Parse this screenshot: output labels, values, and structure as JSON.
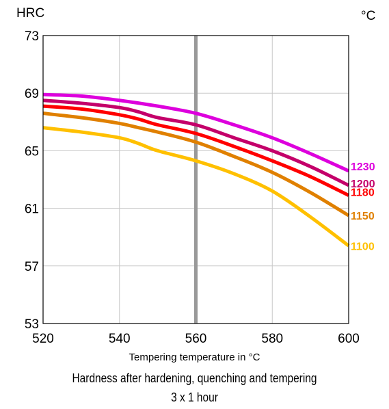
{
  "chart_data": {
    "type": "line",
    "y_unit": "HRC",
    "series_unit": "°C",
    "xlabel": "Tempering temperature in °C",
    "caption_line1": "Hardness after hardening, quenching and tempering",
    "caption_line2": "3 x 1 hour",
    "xlim": [
      520,
      600
    ],
    "ylim": [
      53,
      73
    ],
    "xticks": [
      520,
      540,
      560,
      580,
      600
    ],
    "yticks": [
      53,
      57,
      61,
      65,
      69,
      73
    ],
    "grid": true,
    "reference_line_x": 560,
    "reference_line_color": "#999999",
    "series": [
      {
        "name": "1230",
        "color": "#dd00dd",
        "x": [
          520,
          530,
          540,
          550,
          560,
          570,
          580,
          590,
          600
        ],
        "y": [
          68.9,
          68.8,
          68.5,
          68.1,
          67.6,
          66.8,
          65.9,
          64.8,
          63.6
        ]
      },
      {
        "name": "1200",
        "color": "#c4006a",
        "x": [
          520,
          530,
          540,
          545,
          550,
          560,
          570,
          580,
          590,
          600
        ],
        "y": [
          68.5,
          68.3,
          68.0,
          67.7,
          67.3,
          66.8,
          65.9,
          65.0,
          63.9,
          62.6
        ]
      },
      {
        "name": "1180",
        "color": "#ff0000",
        "x": [
          520,
          530,
          540,
          545,
          550,
          560,
          570,
          580,
          590,
          600
        ],
        "y": [
          68.1,
          67.9,
          67.5,
          67.2,
          66.8,
          66.2,
          65.3,
          64.3,
          63.2,
          61.9
        ]
      },
      {
        "name": "1150",
        "color": "#e08000",
        "x": [
          520,
          530,
          540,
          545,
          550,
          560,
          570,
          580,
          590,
          600
        ],
        "y": [
          67.6,
          67.3,
          66.9,
          66.6,
          66.3,
          65.6,
          64.6,
          63.5,
          62.1,
          60.5
        ]
      },
      {
        "name": "1100",
        "color": "#ffc000",
        "x": [
          520,
          530,
          540,
          545,
          550,
          560,
          570,
          580,
          590,
          600
        ],
        "y": [
          66.6,
          66.3,
          65.9,
          65.5,
          65.0,
          64.3,
          63.4,
          62.2,
          60.4,
          58.4
        ]
      }
    ]
  }
}
